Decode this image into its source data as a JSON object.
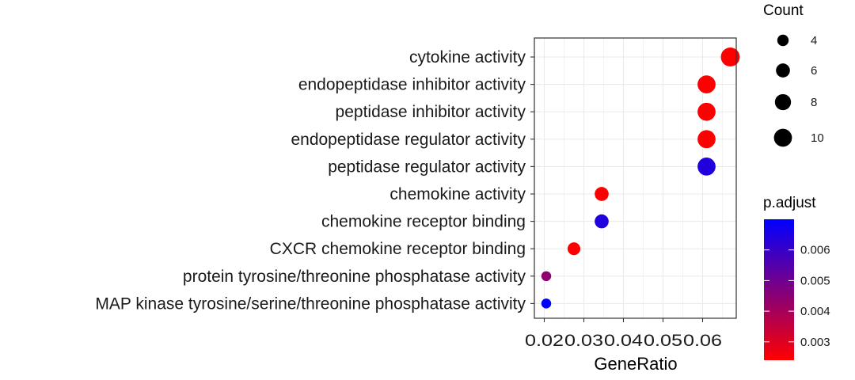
{
  "chart_data": {
    "type": "scatter",
    "xlabel": "GeneRatio",
    "xlim": [
      0.0175,
      0.0685
    ],
    "x_ticks": [
      0.02,
      0.03,
      0.04,
      0.05,
      0.06
    ],
    "x_tick_labels": [
      "0.02",
      "0.03",
      "0.04",
      "0.05",
      "0.06"
    ],
    "categories": [
      "cytokine activity",
      "endopeptidase inhibitor activity",
      "peptidase inhibitor activity",
      "endopeptidase regulator activity",
      "peptidase regulator activity",
      "chemokine activity",
      "chemokine receptor binding",
      "CXCR chemokine receptor binding",
      "protein tyrosine/threonine phosphatase activity",
      "MAP kinase tyrosine/serine/threonine phosphatase activity"
    ],
    "points": [
      {
        "term": "cytokine activity",
        "gene_ratio": 0.067,
        "count": 11,
        "p_adjust": 0.0024
      },
      {
        "term": "endopeptidase inhibitor activity",
        "gene_ratio": 0.061,
        "count": 10,
        "p_adjust": 0.0024
      },
      {
        "term": "peptidase inhibitor activity",
        "gene_ratio": 0.061,
        "count": 10,
        "p_adjust": 0.0024
      },
      {
        "term": "endopeptidase regulator activity",
        "gene_ratio": 0.061,
        "count": 10,
        "p_adjust": 0.0024
      },
      {
        "term": "peptidase regulator activity",
        "gene_ratio": 0.061,
        "count": 10,
        "p_adjust": 0.0064
      },
      {
        "term": "chemokine activity",
        "gene_ratio": 0.0345,
        "count": 6,
        "p_adjust": 0.0024
      },
      {
        "term": "chemokine receptor binding",
        "gene_ratio": 0.0345,
        "count": 6,
        "p_adjust": 0.0064
      },
      {
        "term": "CXCR chemokine receptor binding",
        "gene_ratio": 0.0275,
        "count": 5,
        "p_adjust": 0.0024
      },
      {
        "term": "protein tyrosine/threonine phosphatase activity",
        "gene_ratio": 0.0205,
        "count": 3,
        "p_adjust": 0.0044
      },
      {
        "term": "MAP kinase tyrosine/serine/threonine phosphatase activity",
        "gene_ratio": 0.0205,
        "count": 3,
        "p_adjust": 0.007
      }
    ],
    "size_legend": {
      "title": "Count",
      "values": [
        4,
        6,
        8,
        10
      ],
      "labels": [
        "4",
        "6",
        "8",
        "10"
      ]
    },
    "color_legend": {
      "title": "p.adjust",
      "range": [
        0.0024,
        0.007
      ],
      "low_color": "#ff0000",
      "high_color": "#0000ff",
      "ticks": [
        0.006,
        0.005,
        0.004,
        0.003
      ],
      "tick_labels": [
        "0.006",
        "0.005",
        "0.004",
        "0.003"
      ]
    },
    "grid": true,
    "legend_position": "right"
  }
}
